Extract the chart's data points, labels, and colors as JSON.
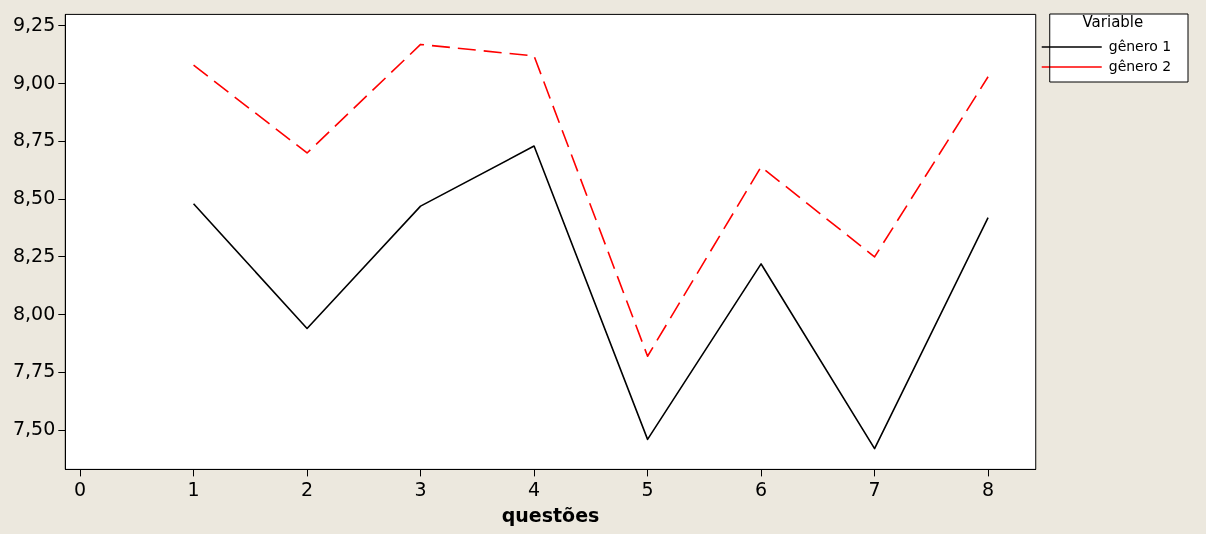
{
  "chart_data": {
    "type": "line",
    "xlabel": "questões",
    "legend_title": "Variable",
    "legend": "top right",
    "grid": false,
    "marker": "none",
    "x": [
      1,
      2,
      3,
      4,
      5,
      6,
      7,
      8
    ],
    "xlim": [
      -0.13,
      8.42
    ],
    "xticks": [
      0,
      1,
      2,
      3,
      4,
      5,
      6,
      7,
      8
    ],
    "ylim": [
      7.33,
      9.3
    ],
    "yticks": [
      {
        "value": 7.5,
        "label": "7,50"
      },
      {
        "value": 7.75,
        "label": "7,75"
      },
      {
        "value": 8,
        "label": "8,00"
      },
      {
        "value": 8.25,
        "label": "8,25"
      },
      {
        "value": 8.5,
        "label": "8,50"
      },
      {
        "value": 8.75,
        "label": "8,75"
      },
      {
        "value": 9,
        "label": "9,00"
      },
      {
        "value": 9.25,
        "label": "9,25"
      }
    ],
    "series": [
      {
        "name": "gênero 1",
        "color": "#000000",
        "line_style": "solid",
        "values": [
          8.48,
          7.94,
          8.47,
          8.73,
          7.46,
          8.22,
          7.42,
          8.42
        ]
      },
      {
        "name": "gênero 2",
        "color": "#ff0000",
        "line_style": "dashed",
        "values": [
          9.08,
          8.7,
          9.17,
          9.12,
          7.82,
          8.64,
          8.25,
          9.03
        ]
      }
    ]
  }
}
